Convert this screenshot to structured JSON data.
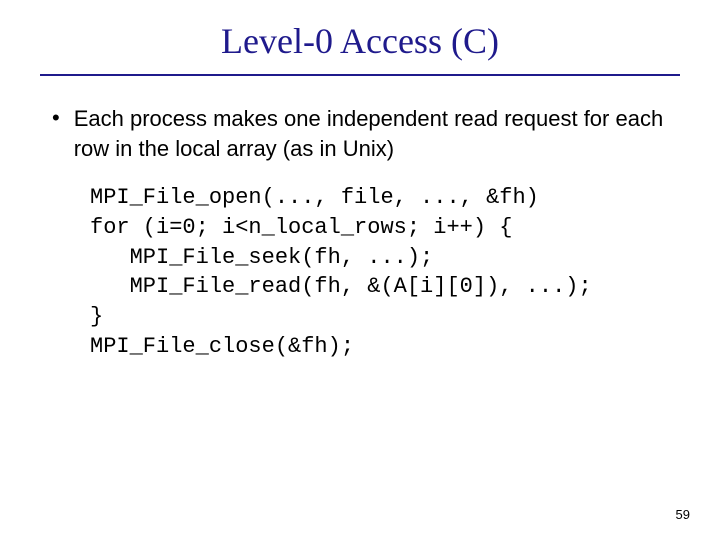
{
  "title": {
    "text": "Level-0 Access (C)",
    "color": "#1f1a8c",
    "fontsize": 36
  },
  "rule": {
    "color": "#1f1a8c",
    "width": 2
  },
  "bullet": {
    "marker": "•",
    "marker_color": "#000000",
    "text": "Each process makes one independent read request for each row in the local array (as in Unix)",
    "text_color": "#000000",
    "fontsize": 22
  },
  "code": {
    "lines": "MPI_File_open(..., file, ..., &fh)\nfor (i=0; i<n_local_rows; i++) {\n   MPI_File_seek(fh, ...);\n   MPI_File_read(fh, &(A[i][0]), ...);\n}\nMPI_File_close(&fh);",
    "color": "#000000",
    "fontsize": 22
  },
  "page_number": {
    "value": "59",
    "color": "#000000",
    "fontsize": 13
  },
  "background_color": "#ffffff"
}
